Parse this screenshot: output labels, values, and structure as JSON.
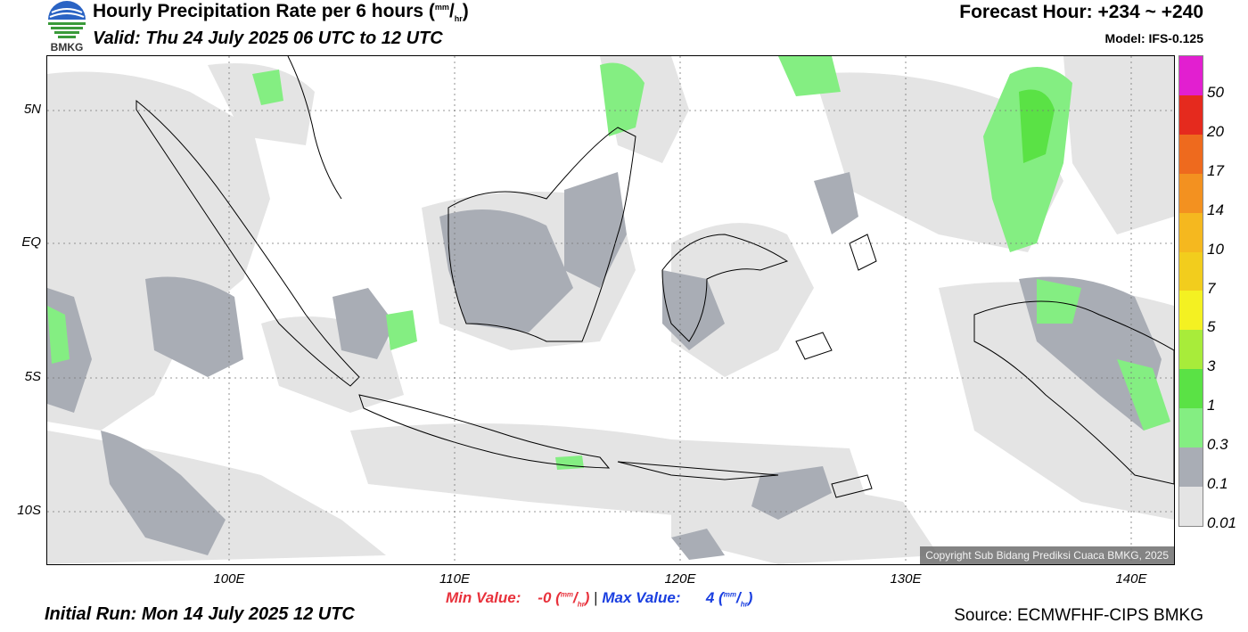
{
  "header": {
    "logo_text": "BMKG",
    "title": "Hourly Precipitation Rate per 6 hours",
    "title_unit_num": "mm",
    "title_unit_den": "hr",
    "valid": "Valid: Thu 24 July 2025 06 UTC to 12 UTC",
    "forecast_hour": "Forecast Hour: +234 ~ +240",
    "model": "Model: IFS-0.125"
  },
  "map": {
    "lat_labels": [
      "5N",
      "EQ",
      "5S",
      "10S"
    ],
    "lon_labels": [
      "100E",
      "110E",
      "120E",
      "130E",
      "140E"
    ],
    "copyright": "Copyright Sub Bidang Prediksi Cuaca BMKG, 2025",
    "colors": {
      "light": "#e4e4e4",
      "grey": "#a9adb5",
      "green": "#84ee82",
      "green2": "#5ae245",
      "coast": "#000000"
    }
  },
  "legend": {
    "labels": [
      "50",
      "20",
      "17",
      "14",
      "10",
      "7",
      "5",
      "3",
      "1",
      "0.3",
      "0.1",
      "0.01"
    ],
    "colors": [
      "#e21fd0",
      "#e52a1e",
      "#ee6a1e",
      "#f39120",
      "#f5b81f",
      "#f2cd1d",
      "#f4f122",
      "#a8ec3a",
      "#5ae245",
      "#84ee82",
      "#a9adb5",
      "#e4e4e4"
    ]
  },
  "footer": {
    "min_label": "Min Value:",
    "min_value": "-0",
    "max_label": "Max Value:",
    "max_value": "4",
    "unit_num": "mm",
    "unit_den": "hr",
    "separator": "|",
    "initial_run": "Initial Run: Mon 14 July 2025 12 UTC",
    "source": "Source: ECMWFHF-CIPS BMKG"
  }
}
